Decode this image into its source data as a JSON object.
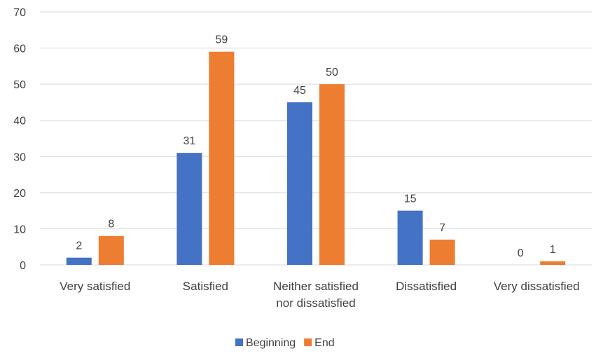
{
  "chart_data": {
    "type": "bar",
    "title": "",
    "xlabel": "",
    "ylabel": "",
    "categories": [
      [
        "Very satisfied"
      ],
      [
        "Satisfied"
      ],
      [
        "Neither satisfied",
        "nor dissatisfied"
      ],
      [
        "Dissatisfied"
      ],
      [
        "Very dissatisfied"
      ]
    ],
    "series": [
      {
        "name": "Beginning",
        "color": "#4472C4",
        "values": [
          2,
          31,
          45,
          15,
          0
        ]
      },
      {
        "name": "End",
        "color": "#ED7D31",
        "values": [
          8,
          59,
          50,
          7,
          1
        ]
      }
    ],
    "ylim": [
      0,
      70
    ],
    "yticks": [
      0,
      10,
      20,
      30,
      40,
      50,
      60,
      70
    ],
    "grid": true,
    "legend_position": "bottom"
  }
}
